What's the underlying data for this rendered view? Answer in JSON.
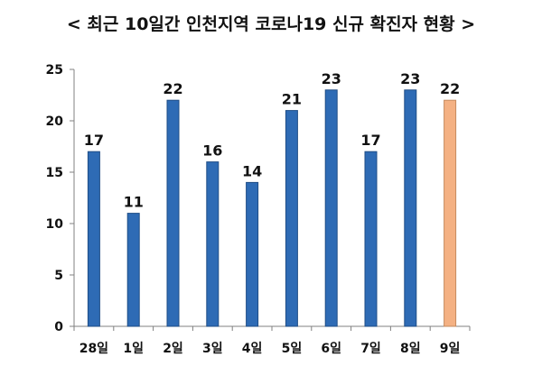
{
  "chart_data": {
    "type": "bar",
    "title": "< 최근 10일간 인천지역 코로나19 신규 확진자 현황 >",
    "xlabel": "",
    "ylabel": "",
    "categories": [
      "28일",
      "1일",
      "2일",
      "3일",
      "4일",
      "5일",
      "6일",
      "7일",
      "8일",
      "9일"
    ],
    "values": [
      17,
      11,
      22,
      16,
      14,
      21,
      23,
      17,
      23,
      22
    ],
    "ylim": [
      0,
      25
    ],
    "yticks": [
      0,
      5,
      10,
      15,
      20,
      25
    ],
    "grid": false,
    "legend": "none",
    "data_labels": true,
    "colors": {
      "bar": "#2e6bb5",
      "bar_border": "#1f4d86",
      "highlight_bar": "#f4b183",
      "highlight_border": "#c58a5e",
      "axis": "#808080",
      "text": "#111111"
    },
    "highlight_index": 9
  }
}
